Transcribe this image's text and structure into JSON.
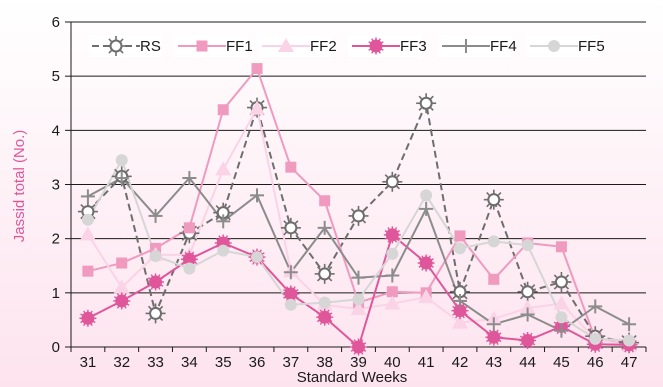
{
  "chart_data": {
    "type": "line",
    "xlabel": "Standard Weeks",
    "ylabel": "Jassid total (No.)",
    "x": [
      31,
      32,
      33,
      34,
      35,
      36,
      37,
      38,
      39,
      40,
      41,
      42,
      43,
      44,
      45,
      46,
      47
    ],
    "ylim": [
      0,
      6
    ],
    "yticks": [
      0,
      1,
      2,
      3,
      4,
      5,
      6
    ],
    "grid": "horizontal",
    "legend_position": "top",
    "series": [
      {
        "name": "RS",
        "color": "#6e6e6e",
        "dash": "dashed",
        "marker": "sun-circle",
        "values": [
          2.5,
          3.15,
          0.62,
          2.1,
          2.48,
          4.42,
          2.2,
          1.35,
          2.42,
          3.05,
          4.5,
          1.02,
          2.72,
          1.02,
          1.2,
          0.2,
          0.08
        ]
      },
      {
        "name": "FF1",
        "color": "#f09ac0",
        "dash": "solid",
        "marker": "square",
        "values": [
          1.4,
          1.55,
          1.82,
          2.2,
          4.38,
          5.14,
          3.32,
          2.7,
          0.82,
          1.02,
          1.0,
          2.05,
          1.25,
          1.92,
          1.85,
          0.15,
          0.04
        ]
      },
      {
        "name": "FF2",
        "color": "#fbd3e6",
        "dash": "solid",
        "marker": "triangle",
        "values": [
          2.08,
          1.1,
          1.7,
          1.7,
          3.28,
          4.4,
          1.4,
          0.78,
          0.7,
          0.8,
          0.92,
          0.45,
          0.52,
          0.72,
          0.8,
          0.15,
          0.02
        ]
      },
      {
        "name": "FF3",
        "color": "#e0569a",
        "dash": "solid",
        "marker": "star-circle",
        "values": [
          0.53,
          0.85,
          1.2,
          1.62,
          1.92,
          1.66,
          0.98,
          0.55,
          0.0,
          2.07,
          1.55,
          0.67,
          0.18,
          0.12,
          0.38,
          0.05,
          0.04
        ]
      },
      {
        "name": "FF4",
        "color": "#8c8c8c",
        "dash": "solid",
        "marker": "plus",
        "values": [
          2.78,
          3.12,
          2.42,
          3.12,
          2.32,
          2.8,
          1.38,
          2.2,
          1.28,
          1.32,
          2.55,
          0.85,
          0.42,
          0.6,
          0.3,
          0.75,
          0.42
        ]
      },
      {
        "name": "FF5",
        "color": "#d6d6d6",
        "dash": "solid",
        "marker": "circle",
        "values": [
          2.35,
          3.45,
          1.68,
          1.45,
          1.78,
          1.66,
          0.78,
          0.82,
          0.88,
          1.72,
          2.8,
          1.82,
          1.95,
          1.88,
          0.55,
          0.15,
          0.12
        ]
      }
    ]
  }
}
